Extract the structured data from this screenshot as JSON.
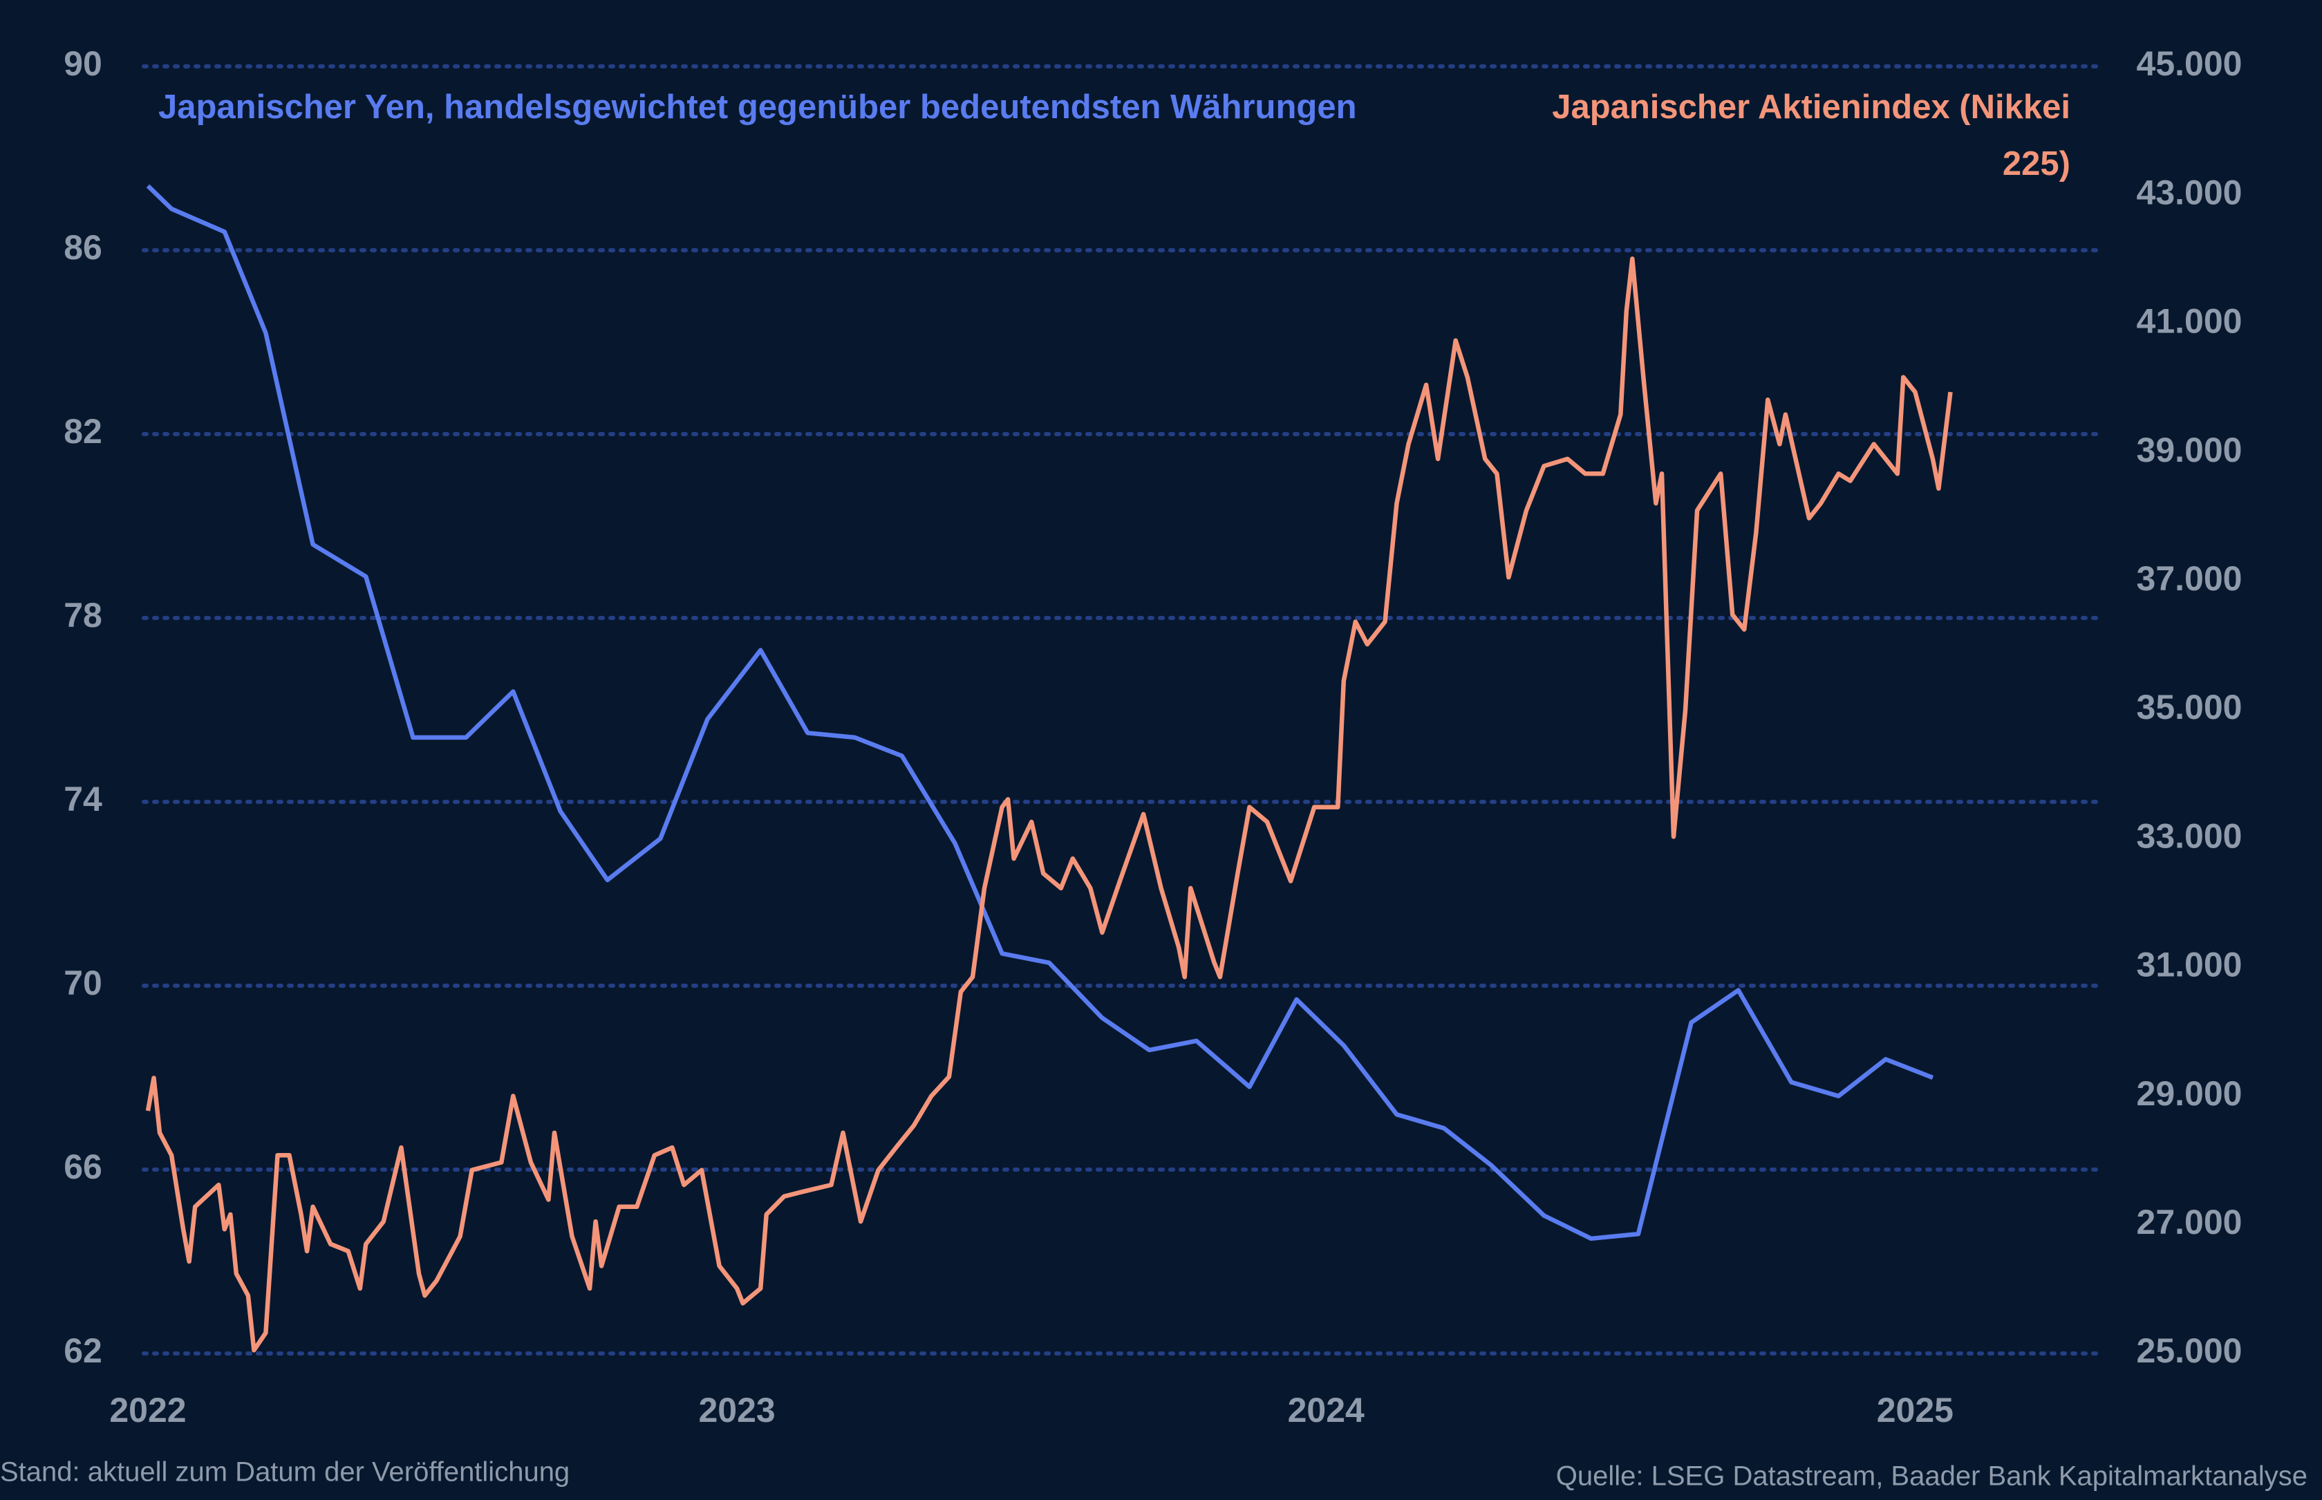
{
  "chart_data": {
    "type": "line",
    "footnote": "Stand: aktuell zum Datum der Veröffentlichung",
    "source": "Quelle: LSEG Datastream, Baader Bank Kapitalmarktanalyse",
    "xlim": [
      2022,
      2025.3
    ],
    "xticks": [
      2022,
      2023,
      2024,
      2025
    ],
    "ylim": [
      62,
      90
    ],
    "yticks": [
      62,
      66,
      70,
      74,
      78,
      82,
      86,
      90
    ],
    "y2lim": [
      25000,
      45000
    ],
    "y2ticks": [
      {
        "value": 25000,
        "label": "25.000"
      },
      {
        "value": 27000,
        "label": "27.000"
      },
      {
        "value": 29000,
        "label": "29.000"
      },
      {
        "value": 31000,
        "label": "31.000"
      },
      {
        "value": 33000,
        "label": "33.000"
      },
      {
        "value": 35000,
        "label": "35.000"
      },
      {
        "value": 37000,
        "label": "37.000"
      },
      {
        "value": 39000,
        "label": "39.000"
      },
      {
        "value": 41000,
        "label": "41.000"
      },
      {
        "value": 43000,
        "label": "43.000"
      },
      {
        "value": 45000,
        "label": "45.000"
      }
    ],
    "grid": true,
    "series": [
      {
        "name": "Japanischer Yen, handelsgewichtet gegenüber bedeutendsten Währungen",
        "color": "#5a7cf0",
        "x": [
          2022.0,
          2022.04,
          2022.13,
          2022.2,
          2022.28,
          2022.37,
          2022.45,
          2022.54,
          2022.62,
          2022.7,
          2022.78,
          2022.87,
          2022.95,
          2023.04,
          2023.12,
          2023.2,
          2023.28,
          2023.37,
          2023.45,
          2023.53,
          2023.62,
          2023.7,
          2023.78,
          2023.87,
          2023.95,
          2024.03,
          2024.12,
          2024.2,
          2024.28,
          2024.37,
          2024.45,
          2024.53,
          2024.62,
          2024.7,
          2024.79,
          2024.87,
          2024.95,
          2025.03
        ],
        "values": [
          87.4,
          86.9,
          86.4,
          84.2,
          79.6,
          78.9,
          75.4,
          75.4,
          76.4,
          73.8,
          72.3,
          73.2,
          75.8,
          77.3,
          75.5,
          75.4,
          75.0,
          73.1,
          70.7,
          70.5,
          69.3,
          68.6,
          68.8,
          67.8,
          69.7,
          68.7,
          67.2,
          66.9,
          66.1,
          65.0,
          64.5,
          64.6,
          69.2,
          69.9,
          67.9,
          67.6,
          68.4,
          68.0
        ]
      },
      {
        "name": "Japanischer Aktienindex (Nikkei 225)",
        "color": "#f4957a",
        "axis": "y2",
        "x": [
          2022.0,
          2022.01,
          2022.02,
          2022.04,
          2022.06,
          2022.07,
          2022.08,
          2022.12,
          2022.13,
          2022.14,
          2022.15,
          2022.17,
          2022.18,
          2022.2,
          2022.21,
          2022.22,
          2022.24,
          2022.26,
          2022.27,
          2022.28,
          2022.31,
          2022.34,
          2022.36,
          2022.37,
          2022.4,
          2022.43,
          2022.46,
          2022.47,
          2022.49,
          2022.53,
          2022.55,
          2022.6,
          2022.62,
          2022.65,
          2022.68,
          2022.69,
          2022.72,
          2022.75,
          2022.76,
          2022.77,
          2022.8,
          2022.83,
          2022.86,
          2022.89,
          2022.91,
          2022.94,
          2022.97,
          2023.0,
          2023.01,
          2023.04,
          2023.05,
          2023.08,
          2023.11,
          2023.16,
          2023.18,
          2023.21,
          2023.24,
          2023.27,
          2023.3,
          2023.33,
          2023.36,
          2023.38,
          2023.4,
          2023.42,
          2023.45,
          2023.46,
          2023.47,
          2023.5,
          2023.52,
          2023.55,
          2023.57,
          2023.6,
          2023.62,
          2023.65,
          2023.69,
          2023.72,
          2023.75,
          2023.76,
          2023.77,
          2023.81,
          2023.82,
          2023.85,
          2023.87,
          2023.9,
          2023.94,
          2023.98,
          2024.02,
          2024.03,
          2024.05,
          2024.07,
          2024.1,
          2024.12,
          2024.14,
          2024.17,
          2024.19,
          2024.22,
          2024.24,
          2024.27,
          2024.29,
          2024.31,
          2024.34,
          2024.37,
          2024.41,
          2024.44,
          2024.47,
          2024.5,
          2024.51,
          2024.52,
          2024.54,
          2024.56,
          2024.57,
          2024.59,
          2024.61,
          2024.63,
          2024.67,
          2024.69,
          2024.71,
          2024.73,
          2024.75,
          2024.77,
          2024.78,
          2024.82,
          2024.84,
          2024.87,
          2024.89,
          2024.93,
          2024.97,
          2024.98,
          2025.0,
          2025.03,
          2025.04,
          2025.06
        ],
        "values": [
          28770,
          29280,
          28430,
          28080,
          26930,
          26430,
          27280,
          27620,
          26930,
          27160,
          26240,
          25900,
          25050,
          25320,
          26700,
          28080,
          28080,
          27160,
          26590,
          27280,
          26700,
          26590,
          26010,
          26700,
          27050,
          28200,
          26240,
          25900,
          26130,
          26820,
          27850,
          27970,
          29000,
          27970,
          27390,
          28430,
          26820,
          26010,
          27050,
          26360,
          27280,
          27280,
          28080,
          28200,
          27620,
          27850,
          26360,
          26010,
          25780,
          26010,
          27160,
          27440,
          27510,
          27620,
          28430,
          27050,
          27850,
          28200,
          28540,
          29000,
          29300,
          30620,
          30850,
          32230,
          33490,
          33610,
          32690,
          33260,
          32460,
          32230,
          32690,
          32230,
          31540,
          32340,
          33380,
          32230,
          31310,
          30850,
          32230,
          31080,
          30850,
          32460,
          33490,
          33260,
          32340,
          33490,
          33490,
          35450,
          36370,
          36020,
          36370,
          38210,
          39130,
          40050,
          38900,
          40740,
          40170,
          38900,
          38670,
          37060,
          38100,
          38790,
          38900,
          38670,
          38670,
          39590,
          41200,
          42010,
          40050,
          38210,
          38670,
          33030,
          34990,
          38100,
          38670,
          36480,
          36250,
          37750,
          39820,
          39130,
          39590,
          37980,
          38210,
          38670,
          38560,
          39130,
          38670,
          40170,
          39940,
          38900,
          38440,
          39940
        ]
      }
    ]
  }
}
